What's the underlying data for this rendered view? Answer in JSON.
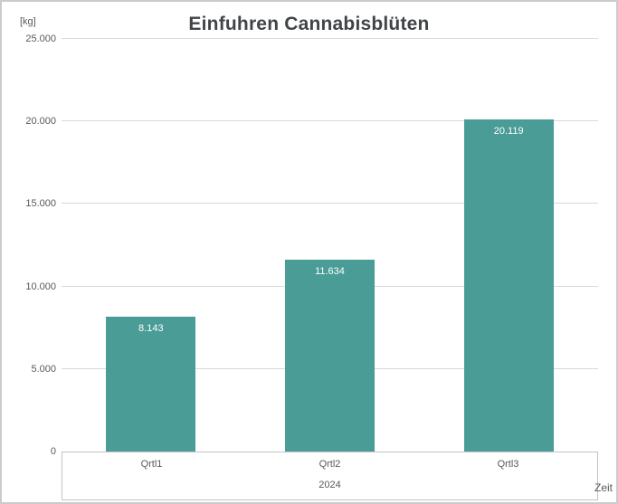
{
  "chart_data": {
    "type": "bar",
    "title": "Einfuhren Cannabisblüten",
    "ylabel": "[kg]",
    "xlabel": "Zeit",
    "categories": [
      "Qrtl1",
      "Qrtl2",
      "Qrtl3"
    ],
    "category_group_label": "2024",
    "values": [
      8143,
      11634,
      20119
    ],
    "value_labels": [
      "8.143",
      "11.634",
      "20.119"
    ],
    "ylim": [
      0,
      25000
    ],
    "ytick_interval": 5000,
    "ytick_labels": [
      "0",
      "5.000",
      "10.000",
      "15.000",
      "20.000",
      "25.000"
    ],
    "grid": true,
    "legend_position": "none",
    "bar_color": "#4a9c96",
    "value_label_color": "#ffffff",
    "axis_text_color": "#595959",
    "gridline_color": "#d9d9d9"
  }
}
